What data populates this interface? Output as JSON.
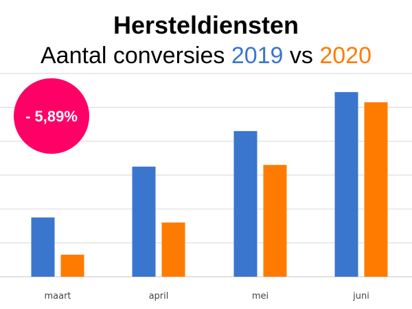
{
  "title": "Hersteldiensten",
  "subtitle": {
    "prefix": "Aantal conversies ",
    "year_a": "2019",
    "middle": " vs ",
    "year_b": "2020"
  },
  "badge": {
    "text": "- 5,89%",
    "color": "#ff0066"
  },
  "colors": {
    "series_2019": "#3a76cd",
    "series_2020": "#ff7b00"
  },
  "chart_data": {
    "type": "bar",
    "title": "Hersteldiensten",
    "subtitle": "Aantal conversies 2019 vs 2020",
    "categories": [
      "maart",
      "april",
      "mei",
      "juni"
    ],
    "series": [
      {
        "name": "2019",
        "color": "#3a76cd",
        "values": [
          1.75,
          3.25,
          4.3,
          5.45
        ]
      },
      {
        "name": "2020",
        "color": "#ff7b00",
        "values": [
          0.65,
          1.6,
          3.3,
          5.15
        ]
      }
    ],
    "ylim": [
      0,
      6
    ],
    "grid": true,
    "legend": "none",
    "xlabel": "",
    "ylabel": ""
  }
}
